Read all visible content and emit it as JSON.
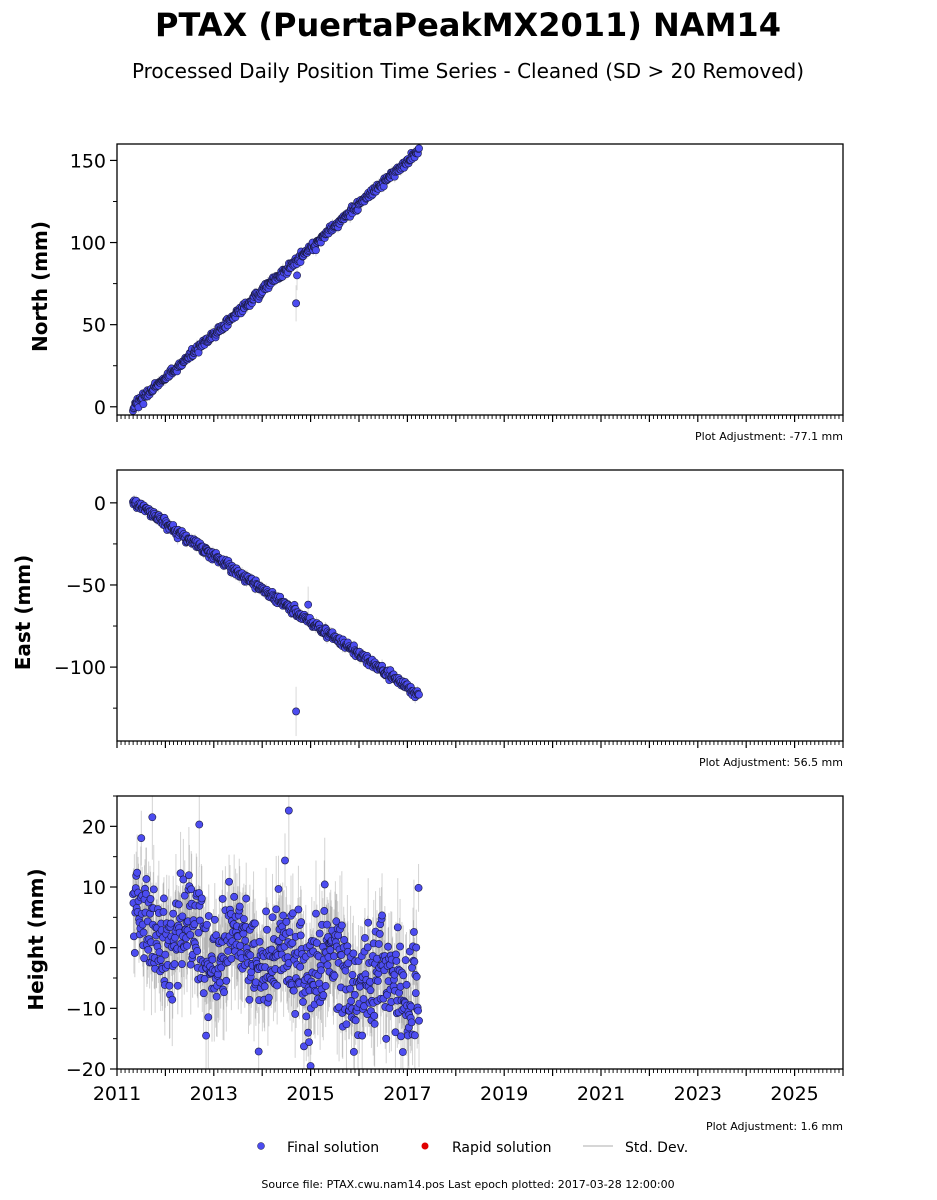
{
  "header": {
    "title": "PTAX (PuertaPeakMX2011) NAM14",
    "subtitle": "Processed Daily Position Time Series - Cleaned (SD > 20 Removed)"
  },
  "footer": {
    "source": "Source file: PTAX.cwu.nam14.pos  Last epoch plotted: 2017-03-28 12:00:00"
  },
  "legend": {
    "items": [
      {
        "label": "Final solution",
        "color": "#4c4cf0"
      },
      {
        "label": "Rapid solution",
        "color": "#e00000"
      },
      {
        "label": "Std. Dev.",
        "color": "#c8c8c8"
      }
    ]
  },
  "colors": {
    "final_fill": "#4c4cf0",
    "final_edge": "#1a1a40",
    "rapid": "#e00000",
    "stddev": "#808080"
  },
  "chart_data": [
    {
      "type": "scatter",
      "panel": "north",
      "ylabel": "North (mm)",
      "adjustment": "Plot Adjustment: -77.1 mm",
      "xlim": [
        2011.0,
        2026.0
      ],
      "ylim": [
        -5,
        160
      ],
      "yticks": [
        0,
        50,
        100,
        150
      ],
      "x_start": 2011.33,
      "x_end": 2017.24,
      "trend": {
        "start": 0,
        "end": 156
      },
      "noise": 1.2,
      "sd_range": [
        1,
        4
      ],
      "outliers": [
        {
          "x": 2014.7,
          "y": 63,
          "sd": 11
        },
        {
          "x": 2014.72,
          "y": 80,
          "sd": 9
        }
      ]
    },
    {
      "type": "scatter",
      "panel": "east",
      "ylabel": "East (mm)",
      "adjustment": "Plot Adjustment: 56.5 mm",
      "xlim": [
        2011.0,
        2026.0
      ],
      "ylim": [
        -145,
        20
      ],
      "yticks": [
        0,
        -50,
        -100
      ],
      "x_start": 2011.33,
      "x_end": 2017.24,
      "trend": {
        "start": 1,
        "end": -117
      },
      "noise": 1.3,
      "sd_range": [
        1,
        4
      ],
      "outliers": [
        {
          "x": 2014.7,
          "y": -127,
          "sd": 15
        },
        {
          "x": 2014.95,
          "y": -62,
          "sd": 11
        }
      ]
    },
    {
      "type": "scatter",
      "panel": "height",
      "ylabel": "Height (mm)",
      "adjustment": "Plot Adjustment: 1.6 mm",
      "xlim": [
        2011.0,
        2026.0
      ],
      "ylim": [
        -20,
        25
      ],
      "yticks": [
        20,
        10,
        0,
        -10,
        -20
      ],
      "x_start": 2011.33,
      "x_end": 2017.24,
      "trend": {
        "start": 4,
        "end": -7
      },
      "noise": 4.2,
      "sd_range": [
        3,
        9
      ],
      "outliers": [
        {
          "x": 2011.73,
          "y": 21.5,
          "sd": 7
        },
        {
          "x": 2012.7,
          "y": 20.3,
          "sd": 7
        },
        {
          "x": 2014.55,
          "y": 22.6,
          "sd": 8
        },
        {
          "x": 2012.84,
          "y": -14.5,
          "sd": 7
        },
        {
          "x": 2015.0,
          "y": -19.5,
          "sd": 8
        }
      ]
    }
  ],
  "xaxis": {
    "ticks": [
      2011,
      2013,
      2015,
      2017,
      2019,
      2021,
      2023,
      2025
    ],
    "tick_labels": [
      "2011",
      "2013",
      "2015",
      "2017",
      "2019",
      "2021",
      "2023",
      "2025"
    ]
  }
}
